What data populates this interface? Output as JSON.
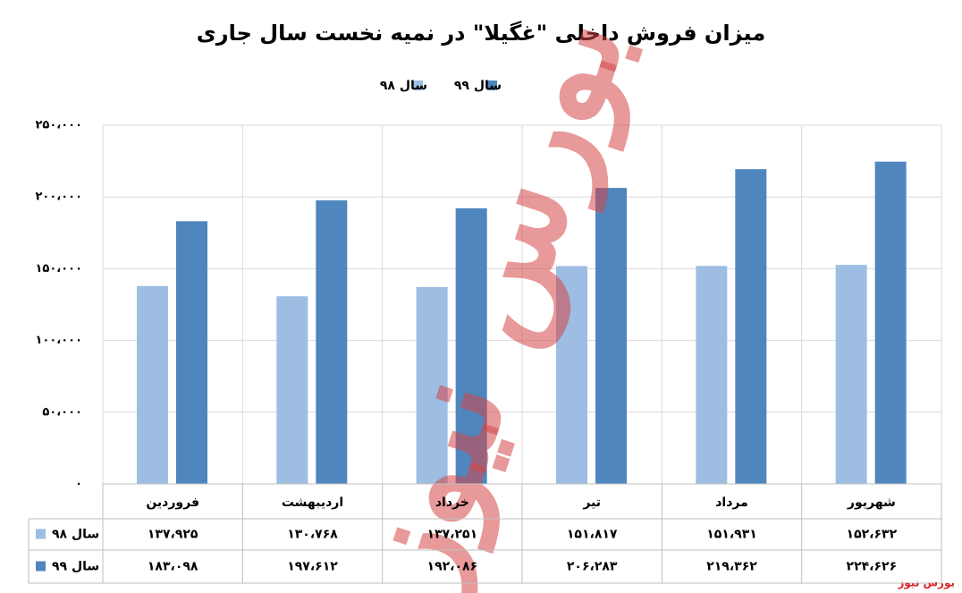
{
  "chart_data": {
    "type": "bar",
    "title": "میزان فروش داخلی \"غگیلا\" در نمیه نخست سال جاری",
    "categories": [
      "فروردین",
      "اردیبهشت",
      "خرداد",
      "تیر",
      "مرداد",
      "شهریور"
    ],
    "series": [
      {
        "name": "سال ۹۸",
        "color": "#9dbde3",
        "values": [
          137925,
          130768,
          137251,
          151817,
          151931,
          152632
        ],
        "value_labels": [
          "۱۳۷،۹۲۵",
          "۱۳۰،۷۶۸",
          "۱۳۷،۲۵۱",
          "۱۵۱،۸۱۷",
          "۱۵۱،۹۳۱",
          "۱۵۲،۶۳۲"
        ]
      },
      {
        "name": "سال ۹۹",
        "color": "#4f86be",
        "values": [
          183098,
          197612,
          192086,
          206283,
          219362,
          224626
        ],
        "value_labels": [
          "۱۸۳،۰۹۸",
          "۱۹۷،۶۱۲",
          "۱۹۲،۰۸۶",
          "۲۰۶،۲۸۳",
          "۲۱۹،۳۶۲",
          "۲۲۴،۶۲۶"
        ]
      }
    ],
    "ylim": [
      0,
      250000
    ],
    "yticks": [
      {
        "value": 0,
        "label": "۰"
      },
      {
        "value": 50000,
        "label": "۵۰،۰۰۰"
      },
      {
        "value": 100000,
        "label": "۱۰۰،۰۰۰"
      },
      {
        "value": 150000,
        "label": "۱۵۰،۰۰۰"
      },
      {
        "value": 200000,
        "label": "۲۰۰،۰۰۰"
      },
      {
        "value": 250000,
        "label": "۲۵۰،۰۰۰"
      }
    ],
    "grid": true,
    "legend": "top",
    "watermark": "بورس نیوز",
    "source": "بورس نیوز"
  }
}
